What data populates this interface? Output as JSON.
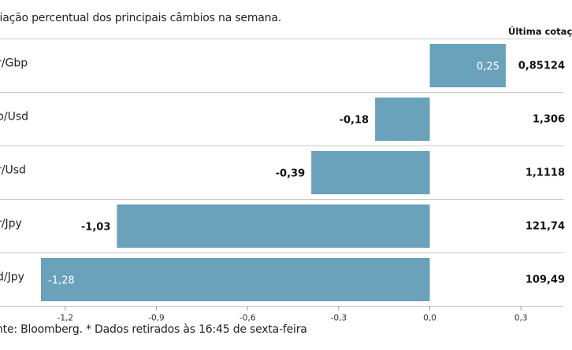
{
  "chart_data": {
    "type": "bar",
    "orientation": "horizontal",
    "subtitle": "riação percentual dos principais câmbios na semana.",
    "categories": [
      "r/Gbp",
      "p/Usd",
      "r/Usd",
      "r/Jpy",
      "d/Jpy"
    ],
    "values": [
      0.25,
      -0.18,
      -0.39,
      -1.03,
      -1.28
    ],
    "value_labels": [
      "0,25",
      "-0,18",
      "-0,39",
      "-1,03",
      "-1,28"
    ],
    "last_quote_header": "Última cotaç",
    "last_quotes": [
      "0,85124",
      "1,306",
      "1,1118",
      "121,74",
      "109,49"
    ],
    "x_ticks": [
      -1.2,
      -0.9,
      -0.6,
      -0.3,
      0.0,
      0.3
    ],
    "x_tick_labels": [
      "-1,2",
      "-0,9",
      "-0,6",
      "-0,3",
      "0,0",
      "0,3"
    ],
    "xlim": [
      -1.3,
      0.4
    ],
    "grid": false,
    "bar_color": "#6aa1bb",
    "source_note": "nte: Bloomberg.  * Dados retirados às 16:45 de sexta-feira"
  }
}
